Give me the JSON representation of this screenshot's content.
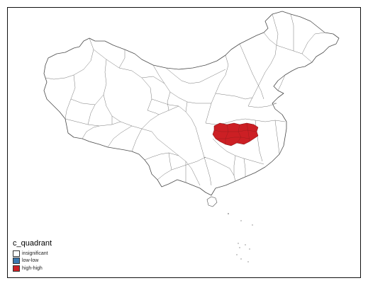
{
  "map": {
    "legend": {
      "title": "c_quadrant",
      "items": [
        {
          "label": "insignificant",
          "color": "#ffffff"
        },
        {
          "label": "low-low",
          "color": "#3a78b0"
        },
        {
          "label": "high-high",
          "color": "#cc1f24"
        }
      ]
    },
    "highlight_color": "#cc1f24"
  }
}
